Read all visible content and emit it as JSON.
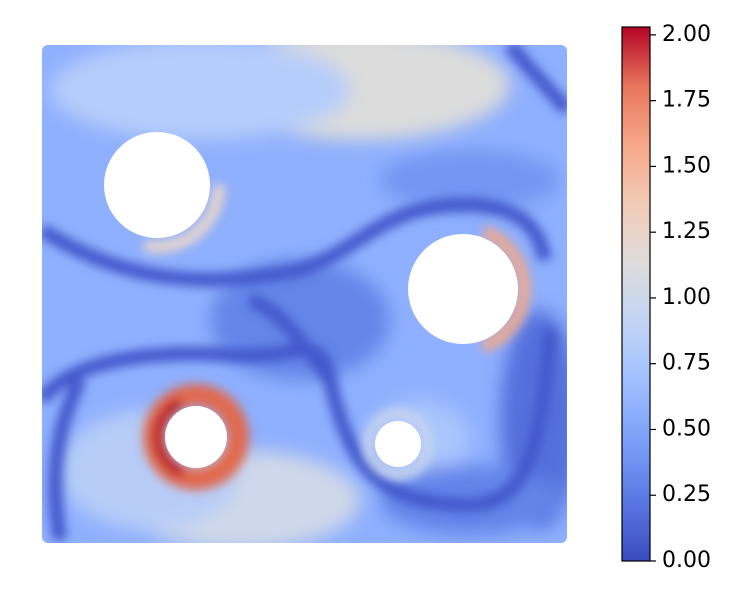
{
  "chart_data": {
    "type": "colorbar-field",
    "colormap": [
      "#3b4cc0",
      "#5977e3",
      "#7b9ff9",
      "#9ebeff",
      "#c0d4f5",
      "#dddcdc",
      "#f2cbb7",
      "#f7a889",
      "#e8765c",
      "#b40426"
    ],
    "clim": [
      0,
      2.03
    ],
    "cticks": [
      {
        "value": 0,
        "label": "0.00"
      },
      {
        "value": 0.25,
        "label": "0.25"
      },
      {
        "value": 0.5,
        "label": "0.50"
      },
      {
        "value": 0.75,
        "label": "0.75"
      },
      {
        "value": 1,
        "label": "1.00"
      },
      {
        "value": 1.25,
        "label": "1.25"
      },
      {
        "value": 1.5,
        "label": "1.50"
      },
      {
        "value": 1.75,
        "label": "1.75"
      },
      {
        "value": 2,
        "label": "2.00"
      }
    ]
  }
}
